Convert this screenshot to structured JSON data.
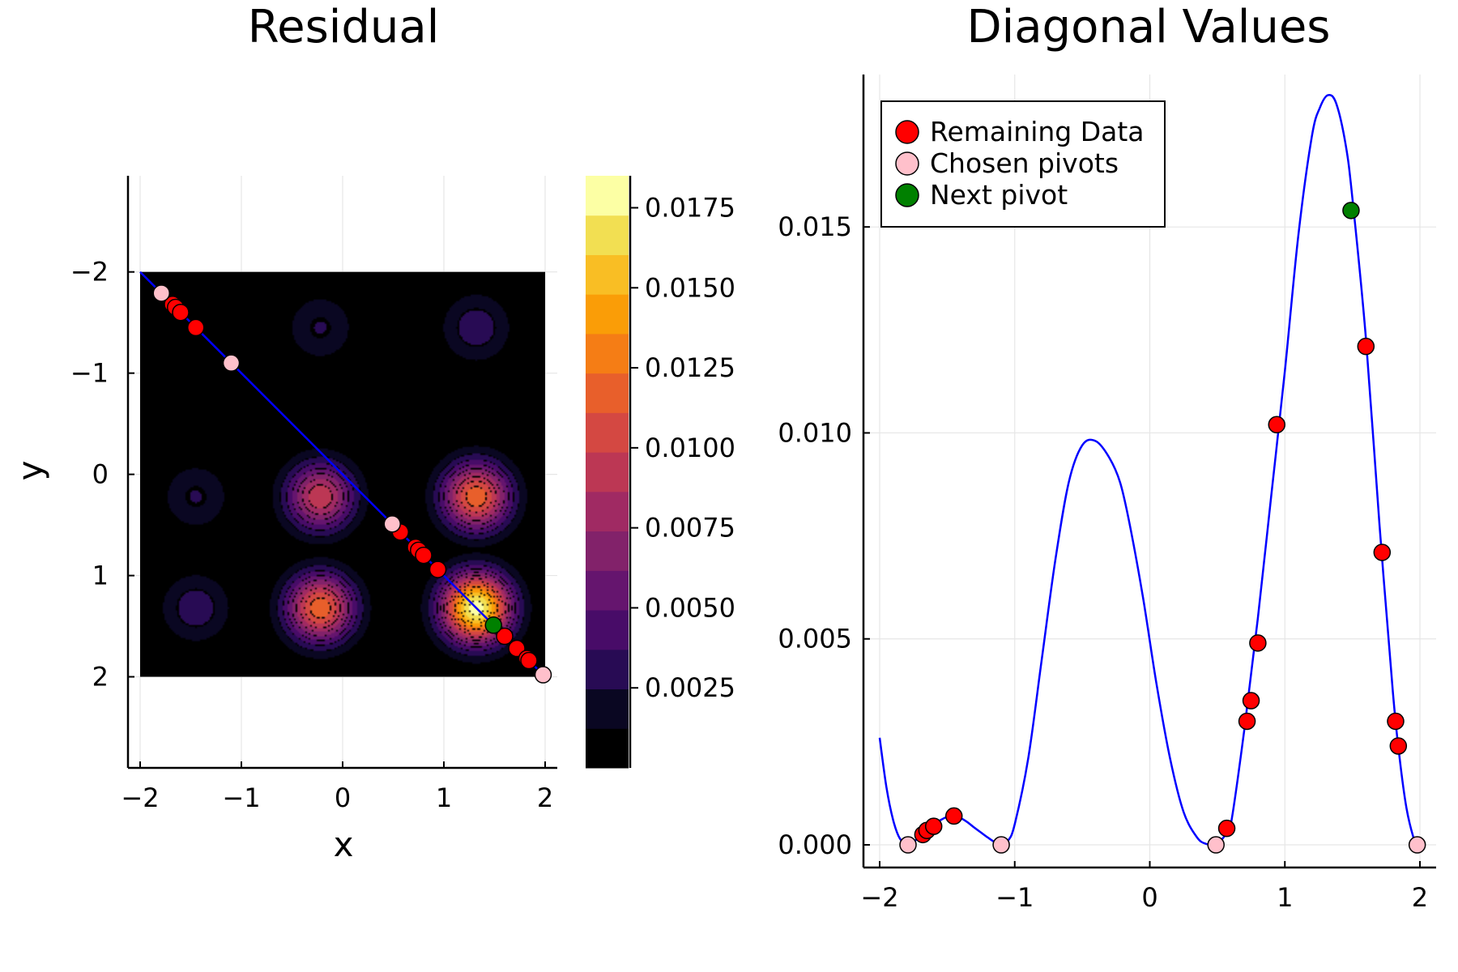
{
  "chart_data": [
    {
      "type": "heatmap",
      "title": "Residual",
      "xlabel": "x",
      "ylabel": "y",
      "xlim": [
        -2.12,
        2.12
      ],
      "ylim": [
        2.9,
        -2.95
      ],
      "y_axis_reversed": true,
      "data_extent": {
        "x": [
          -2,
          2
        ],
        "y": [
          -2,
          2
        ]
      },
      "xticks": [
        -2,
        -1,
        0,
        1,
        2
      ],
      "xtick_labels": [
        "−2",
        "−1",
        "0",
        "1",
        "2"
      ],
      "yticks": [
        -2,
        -1,
        0,
        1,
        2
      ],
      "ytick_labels": [
        "−2",
        "−1",
        "0",
        "1",
        "2"
      ],
      "grid": true,
      "colormap": "inferno",
      "colorbar": {
        "range": [
          0,
          0.0185
        ],
        "ticks": [
          0.0025,
          0.005,
          0.0075,
          0.01,
          0.0125,
          0.015,
          0.0175
        ],
        "tick_labels": [
          "0.0025",
          "0.0050",
          "0.0075",
          "0.0100",
          "0.0125",
          "0.0150",
          "0.0175"
        ],
        "levels": 15
      },
      "peaks": [
        {
          "x": -0.22,
          "y": 0.22,
          "value": 0.0098
        },
        {
          "x": 1.32,
          "y": 0.22,
          "value": 0.0122
        },
        {
          "x": -0.22,
          "y": 1.32,
          "value": 0.0122
        },
        {
          "x": 1.32,
          "y": 1.32,
          "value": 0.0182
        },
        {
          "x": -1.45,
          "y": -1.45,
          "value": 0.0007
        },
        {
          "x": -0.22,
          "y": -1.45,
          "value": 0.0027
        },
        {
          "x": 1.32,
          "y": -1.45,
          "value": 0.0034
        },
        {
          "x": -1.45,
          "y": 0.22,
          "value": 0.0027
        },
        {
          "x": -1.45,
          "y": 1.32,
          "value": 0.0034
        }
      ],
      "diagonal_line": {
        "x": [
          -2,
          2
        ],
        "y": [
          -2,
          2
        ],
        "color": "#0000ff"
      },
      "series": [
        {
          "name": "Remaining Data",
          "color": "#ff0000",
          "x": [
            -1.68,
            -1.65,
            -1.6,
            -1.45,
            0.57,
            0.72,
            0.75,
            0.8,
            0.94,
            1.6,
            1.72,
            1.82,
            1.84
          ]
        },
        {
          "name": "Chosen pivots",
          "color": "#ffc0cb",
          "x": [
            -1.79,
            -1.1,
            0.49,
            1.98
          ]
        },
        {
          "name": "Next pivot",
          "color": "#008000",
          "x": [
            1.49
          ]
        }
      ]
    },
    {
      "type": "line",
      "title": "Diagonal Values",
      "xlabel": "",
      "ylabel": "",
      "xlim": [
        -2.12,
        2.12
      ],
      "ylim": [
        -0.00055,
        0.0187
      ],
      "xticks": [
        -2,
        -1,
        0,
        1,
        2
      ],
      "xtick_labels": [
        "−2",
        "−1",
        "0",
        "1",
        "2"
      ],
      "yticks": [
        0,
        0.005,
        0.01,
        0.015
      ],
      "ytick_labels": [
        "0.000",
        "0.005",
        "0.010",
        "0.015"
      ],
      "grid": true,
      "legend": {
        "position": "top-left",
        "entries": [
          "Remaining Data",
          "Chosen pivots",
          "Next pivot"
        ]
      },
      "curve": {
        "color": "#0000ff",
        "x": [
          -2.0,
          -1.95,
          -1.9,
          -1.85,
          -1.79,
          -1.75,
          -1.7,
          -1.65,
          -1.6,
          -1.55,
          -1.5,
          -1.45,
          -1.4,
          -1.35,
          -1.3,
          -1.25,
          -1.2,
          -1.15,
          -1.1,
          -1.05,
          -1.0,
          -0.9,
          -0.8,
          -0.7,
          -0.6,
          -0.5,
          -0.4,
          -0.3,
          -0.22,
          -0.15,
          -0.05,
          0.05,
          0.15,
          0.25,
          0.35,
          0.42,
          0.49,
          0.55,
          0.6,
          0.7,
          0.8,
          0.9,
          1.0,
          1.1,
          1.2,
          1.26,
          1.32,
          1.38,
          1.45,
          1.5,
          1.6,
          1.7,
          1.8,
          1.85,
          1.9,
          1.95,
          1.98,
          2.0
        ],
        "y": [
          0.0026,
          0.0014,
          0.0006,
          0.00015,
          0.0,
          5e-05,
          0.00025,
          0.0004,
          0.0005,
          0.0006,
          0.00068,
          0.0007,
          0.00065,
          0.00055,
          0.00042,
          0.0003,
          0.00018,
          7e-05,
          0.0,
          0.0001,
          0.0005,
          0.0021,
          0.0045,
          0.0069,
          0.0088,
          0.0097,
          0.0098,
          0.0094,
          0.0088,
          0.0078,
          0.006,
          0.0039,
          0.0021,
          0.0008,
          0.00018,
          2e-05,
          0.0,
          0.0002,
          0.0005,
          0.0028,
          0.0055,
          0.0085,
          0.0115,
          0.0148,
          0.0172,
          0.0179,
          0.0182,
          0.018,
          0.017,
          0.0157,
          0.0123,
          0.0078,
          0.0037,
          0.0021,
          0.0009,
          0.0002,
          0.0,
          0.0
        ]
      },
      "series": [
        {
          "name": "Remaining Data",
          "color": "#ff0000",
          "x": [
            -1.68,
            -1.65,
            -1.6,
            -1.45,
            0.57,
            0.72,
            0.75,
            0.8,
            0.94,
            1.6,
            1.72,
            1.82,
            1.84
          ],
          "y": [
            0.00025,
            0.00035,
            0.00045,
            0.0007,
            0.0004,
            0.003,
            0.0035,
            0.0049,
            0.0102,
            0.0121,
            0.0071,
            0.003,
            0.0024
          ]
        },
        {
          "name": "Chosen pivots",
          "color": "#ffc0cb",
          "x": [
            -1.79,
            -1.1,
            0.49,
            1.98
          ],
          "y": [
            0.0,
            0.0,
            0.0,
            0.0
          ]
        },
        {
          "name": "Next pivot",
          "color": "#008000",
          "x": [
            1.49
          ],
          "y": [
            0.0154
          ]
        }
      ]
    }
  ]
}
